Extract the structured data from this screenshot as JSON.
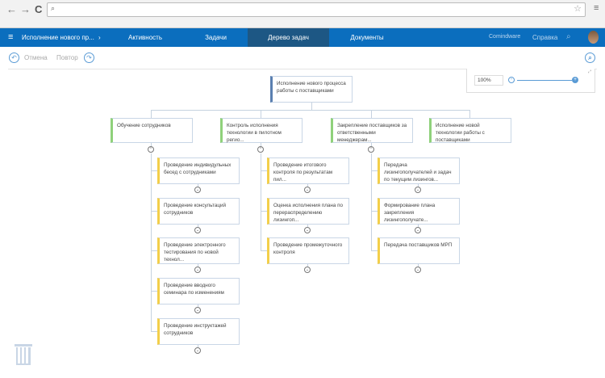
{
  "browser": {
    "back": "←",
    "forward": "→",
    "reload": "C",
    "address": ""
  },
  "nav": {
    "breadcrumb": "Исполнение нового пр...",
    "tabs": [
      "Активность",
      "Задачи",
      "Дерево задач",
      "Документы"
    ],
    "active_tab": "Дерево задач",
    "brand": "Comindware",
    "help": "Справка",
    "accent": "#0b6ebe"
  },
  "toolbar": {
    "undo": "Отмена",
    "redo": "Повтор"
  },
  "zoom": {
    "value": "100%",
    "level": 1.0
  },
  "tree": {
    "root": "Исполнение нового процесса работы с поставщиками",
    "level1": [
      "Обучение сотрудников",
      "Контроль исполнения технологии в пилотном регио...",
      "Закрепление поставщиков за ответственными менеджерам...",
      "Исполнение новой технологии работы с поставщиками"
    ],
    "children": [
      [
        "Проведение индивидульных бесед с сотрудниками",
        "Проведение консультаций сотрудников",
        "Проведение электронного тестирования по новой технол...",
        "Проведение вводного семинара по изменениям",
        "Проведение инструктажей сотрудников"
      ],
      [
        "Проведение итогового контроля по результатам пил...",
        "Оценка исполнения плана по перераспределению лизингоп...",
        "Проведение промежуточного контроля"
      ],
      [
        "Передача лизингополучателей и задач по текущим лизингов...",
        "Формирование плана закрепления лизингополучате...",
        "Передача поставщиков МРП"
      ]
    ]
  }
}
